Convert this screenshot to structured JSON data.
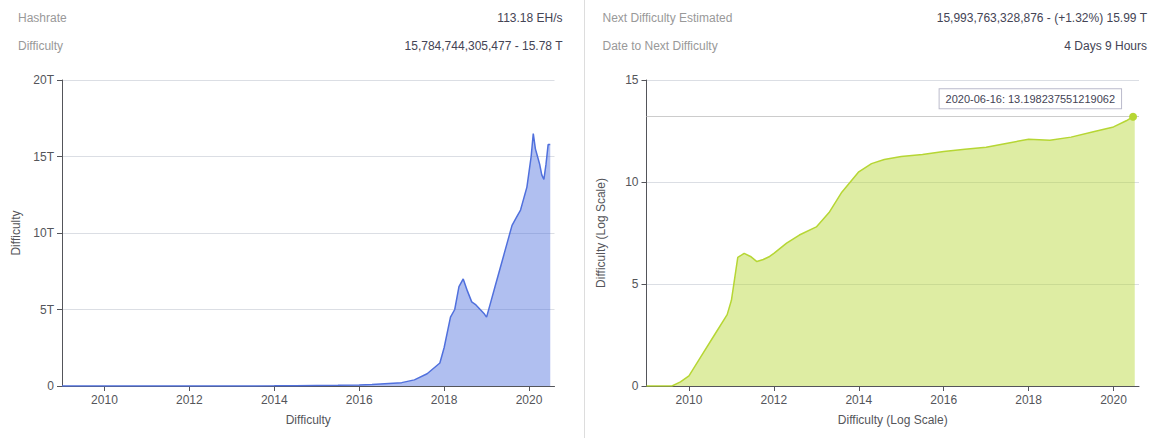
{
  "chart_data": [
    {
      "type": "area",
      "annotations": [
        {
          "label": "Hashrate",
          "value": "113.18 EH/s"
        },
        {
          "label": "Difficulty",
          "value": "15,784,744,305,477 - 15.78 T"
        }
      ],
      "xlabel": "Difficulty",
      "ylabel": "Difficulty",
      "x": [
        2009.0,
        2010.0,
        2010.5,
        2011.0,
        2011.5,
        2012.0,
        2012.5,
        2013.0,
        2013.5,
        2014.0,
        2014.5,
        2015.0,
        2015.5,
        2016.0,
        2016.3,
        2016.6,
        2017.0,
        2017.3,
        2017.6,
        2017.9,
        2018.0,
        2018.15,
        2018.25,
        2018.35,
        2018.45,
        2018.55,
        2018.65,
        2018.75,
        2018.85,
        2018.95,
        2019.0,
        2019.1,
        2019.2,
        2019.3,
        2019.4,
        2019.5,
        2019.6,
        2019.7,
        2019.8,
        2019.85,
        2019.9,
        2019.95,
        2020.0,
        2020.05,
        2020.1,
        2020.15,
        2020.2,
        2020.25,
        2020.3,
        2020.35,
        2020.4,
        2020.45,
        2020.5
      ],
      "values": [
        0.0,
        0.0001,
        0.0001,
        0.0002,
        0.0003,
        0.0005,
        0.001,
        0.002,
        0.005,
        0.01,
        0.02,
        0.04,
        0.05,
        0.07,
        0.09,
        0.15,
        0.22,
        0.4,
        0.8,
        1.5,
        2.5,
        4.5,
        5.0,
        6.5,
        7.0,
        6.2,
        5.5,
        5.3,
        5.0,
        4.7,
        4.5,
        5.5,
        6.5,
        7.5,
        8.5,
        9.5,
        10.5,
        11.0,
        11.5,
        12.0,
        12.5,
        13.0,
        14.0,
        15.0,
        16.5,
        15.5,
        15.0,
        14.5,
        13.8,
        13.5,
        14.5,
        15.78,
        15.78
      ],
      "xlim": [
        2009.0,
        2020.6
      ],
      "xticks": [
        2010,
        2012,
        2014,
        2016,
        2018,
        2020
      ],
      "ylim": [
        0,
        20
      ],
      "yticks": [
        0,
        {
          "value": 5,
          "label": "5T"
        },
        {
          "value": 10,
          "label": "10T"
        },
        {
          "value": 15,
          "label": "15T"
        },
        {
          "value": 20,
          "label": "20T"
        }
      ],
      "grid": "y"
    },
    {
      "type": "area",
      "annotations": [
        {
          "label": "Next Difficulty Estimated",
          "value": "15,993,763,328,876 - (+1.32%) 15.99 T"
        },
        {
          "label": "Date to Next Difficulty",
          "value": "4 Days 9 Hours"
        },
        {
          "text": "2020-06-16: 13.198237551219062",
          "x": 2020.46,
          "y": 13.2
        }
      ],
      "xlabel": "Difficulty (Log Scale)",
      "ylabel": "Difficulty (Log Scale)",
      "x": [
        2009.0,
        2009.6,
        2009.8,
        2010.0,
        2010.3,
        2010.6,
        2010.9,
        2011.0,
        2011.15,
        2011.3,
        2011.45,
        2011.6,
        2011.75,
        2011.9,
        2012.0,
        2012.3,
        2012.6,
        2013.0,
        2013.3,
        2013.6,
        2014.0,
        2014.3,
        2014.6,
        2015.0,
        2015.5,
        2016.0,
        2016.5,
        2017.0,
        2017.5,
        2018.0,
        2018.5,
        2019.0,
        2019.5,
        2020.0,
        2020.3,
        2020.46,
        2020.5
      ],
      "values": [
        0.0,
        0.0,
        0.2,
        0.5,
        1.5,
        2.5,
        3.5,
        4.2,
        6.3,
        6.5,
        6.35,
        6.1,
        6.2,
        6.35,
        6.5,
        7.0,
        7.4,
        7.8,
        8.5,
        9.5,
        10.5,
        10.9,
        11.1,
        11.25,
        11.35,
        11.5,
        11.6,
        11.7,
        11.9,
        12.1,
        12.05,
        12.2,
        12.45,
        12.7,
        13.0,
        13.2,
        13.2
      ],
      "xlim": [
        2009.0,
        2020.6
      ],
      "xticks": [
        2010,
        2012,
        2014,
        2016,
        2018,
        2020
      ],
      "ylim": [
        0,
        15
      ],
      "yticks": [
        0,
        5,
        10,
        15
      ],
      "grid": "y"
    }
  ]
}
